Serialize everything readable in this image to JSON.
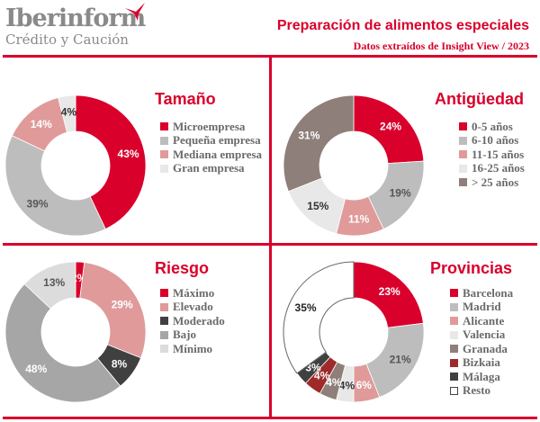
{
  "header": {
    "brand": "Iberinform",
    "brand_sub": "Crédito y Caución",
    "title": "Preparación de alimentos especiales",
    "subtitle": "Datos extraídos de Insight View / 2023"
  },
  "chart_data": [
    {
      "type": "pie",
      "title": "Tamaño",
      "categories": [
        "Microempresa",
        "Pequeña empresa",
        "Mediana empresa",
        "Gran empresa"
      ],
      "values": [
        43,
        39,
        14,
        4
      ],
      "labels": [
        "43%",
        "39%",
        "14%",
        "4%"
      ],
      "colors": [
        "#d9002b",
        "#bdbdbd",
        "#e09a9a",
        "#e8e8e8"
      ],
      "label_colors": [
        "#fff",
        "#555",
        "#fff",
        "#333"
      ]
    },
    {
      "type": "pie",
      "title": "Antigüedad",
      "categories": [
        "0-5 años",
        "6-10 años",
        "11-15 años",
        "16-25 años",
        "> 25 años"
      ],
      "values": [
        24,
        19,
        11,
        15,
        31
      ],
      "labels": [
        "24%",
        "19%",
        "11%",
        "15%",
        "31%"
      ],
      "colors": [
        "#d9002b",
        "#bdbdbd",
        "#e09a9a",
        "#e8e8e8",
        "#8e7f7a"
      ],
      "label_colors": [
        "#fff",
        "#555",
        "#fff",
        "#333",
        "#fff"
      ]
    },
    {
      "type": "pie",
      "title": "Riesgo",
      "categories": [
        "Máximo",
        "Elevado",
        "Moderado",
        "Bajo",
        "Mínimo"
      ],
      "values": [
        2,
        29,
        8,
        48,
        13
      ],
      "labels": [
        "2%",
        "29%",
        "8%",
        "48%",
        "13%"
      ],
      "colors": [
        "#d9002b",
        "#e09a9a",
        "#404040",
        "#a6a6a6",
        "#dcdcdc"
      ],
      "label_colors": [
        "#fff",
        "#fff",
        "#fff",
        "#fff",
        "#555"
      ]
    },
    {
      "type": "pie",
      "title": "Provincias",
      "categories": [
        "Barcelona",
        "Madrid",
        "Alicante",
        "Valencia",
        "Granada",
        "Bizkaia",
        "Málaga",
        "Resto"
      ],
      "values": [
        23,
        21,
        6,
        4,
        4,
        4,
        3,
        35
      ],
      "labels": [
        "23%",
        "21%",
        "6%",
        "4%",
        "4%",
        "4%",
        "3%",
        "35%"
      ],
      "colors": [
        "#d9002b",
        "#bdbdbd",
        "#e09a9a",
        "#e8e8e8",
        "#8e7f7a",
        "#9e2a2a",
        "#404040",
        "#ffffff"
      ],
      "label_colors": [
        "#fff",
        "#555",
        "#fff",
        "#333",
        "#fff",
        "#fff",
        "#fff",
        "#222"
      ]
    }
  ]
}
